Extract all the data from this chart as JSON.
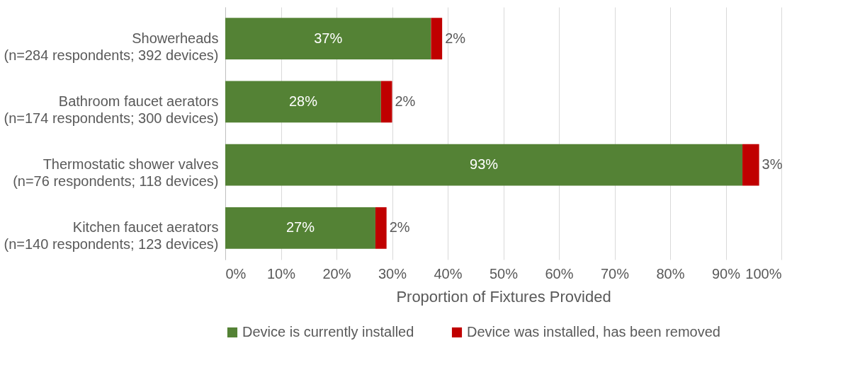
{
  "chart_data": {
    "type": "bar",
    "orientation": "horizontal",
    "stacked": true,
    "xlabel": "Proportion of Fixtures Provided",
    "categories": [
      "Showerheads\n(n=284 respondents; 392 devices)",
      "Bathroom faucet aerators\n(n=174 respondents; 300 devices)",
      "Thermostatic shower valves\n(n=76 respondents; 118 devices)",
      "Kitchen faucet aerators\n(n=140 respondents; 123 devices)"
    ],
    "series": [
      {
        "name": "Device is currently installed",
        "color": "#548235",
        "values": [
          37,
          28,
          93,
          27
        ],
        "value_labels": [
          "37%",
          "28%",
          "93%",
          "27%"
        ]
      },
      {
        "name": "Device was installed, has been removed",
        "color": "#c00000",
        "values": [
          2,
          2,
          3,
          2
        ],
        "value_labels": [
          "2%",
          "2%",
          "3%",
          "2%"
        ]
      }
    ],
    "xlim": [
      0,
      100
    ],
    "xticks": [
      {
        "value": 0,
        "label": "0%"
      },
      {
        "value": 10,
        "label": "10%"
      },
      {
        "value": 20,
        "label": "20%"
      },
      {
        "value": 30,
        "label": "30%"
      },
      {
        "value": 40,
        "label": "40%"
      },
      {
        "value": 50,
        "label": "50%"
      },
      {
        "value": 60,
        "label": "60%"
      },
      {
        "value": 70,
        "label": "70%"
      },
      {
        "value": 80,
        "label": "80%"
      },
      {
        "value": 90,
        "label": "90%"
      },
      {
        "value": 100,
        "label": "100%"
      }
    ],
    "grid": "x",
    "legend": "bottom"
  }
}
